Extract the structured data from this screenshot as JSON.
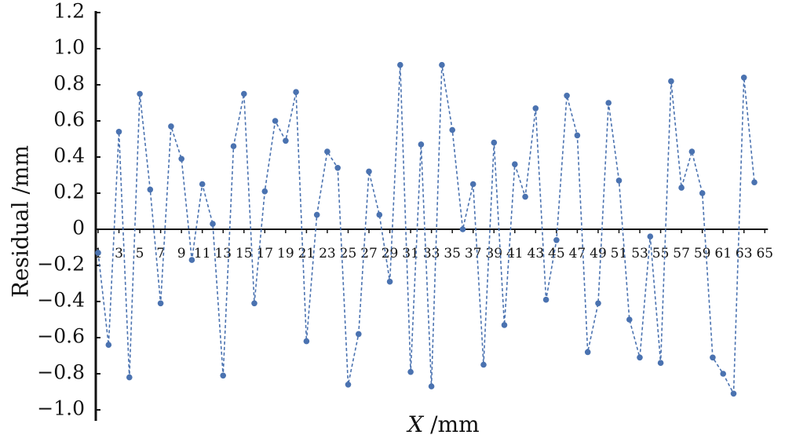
{
  "chart_data": {
    "type": "line",
    "xlabel_var": "X",
    "xlabel_unit": " /mm",
    "ylabel": "Residual /mm",
    "ylim": [
      -1.0,
      1.2
    ],
    "xlim": [
      1,
      65
    ],
    "grid": false,
    "yticks": [
      1.2,
      1.0,
      0.8,
      0.6,
      0.4,
      0.2,
      0,
      -0.2,
      -0.4,
      -0.6,
      -0.8,
      -1.0
    ],
    "ytick_labels": [
      "1.2",
      "1.0",
      "0.8",
      "0.6",
      "0.4",
      "0.2",
      "0",
      "−0.2",
      "−0.4",
      "−0.6",
      "−0.8",
      "−1.0"
    ],
    "xticks": [
      1,
      3,
      5,
      7,
      9,
      11,
      13,
      15,
      17,
      19,
      21,
      23,
      25,
      27,
      29,
      31,
      33,
      35,
      37,
      39,
      41,
      43,
      45,
      47,
      49,
      51,
      53,
      55,
      57,
      59,
      61,
      63,
      65
    ],
    "line_color": "#4a72b0",
    "marker_color": "#4a72b0",
    "line_style": "dashed",
    "series": [
      {
        "x": [
          1,
          2,
          3,
          4,
          5,
          6,
          7,
          8,
          9,
          10,
          11,
          12,
          13,
          14,
          15,
          16,
          17,
          18,
          19,
          20,
          21,
          22,
          23,
          24,
          25,
          26,
          27,
          28,
          29,
          30,
          31,
          32,
          33,
          34,
          35,
          36,
          37,
          38,
          39,
          40,
          41,
          42,
          43,
          44,
          45,
          46,
          47,
          48,
          49,
          50,
          51,
          52,
          53,
          54,
          55,
          56,
          57,
          58,
          59,
          60,
          61,
          62,
          63,
          64
        ],
        "values": [
          -0.13,
          -0.64,
          0.54,
          -0.82,
          0.75,
          0.22,
          -0.41,
          0.57,
          0.39,
          -0.17,
          0.25,
          0.03,
          -0.81,
          0.46,
          0.75,
          -0.41,
          0.21,
          0.6,
          0.49,
          0.76,
          -0.62,
          0.08,
          0.43,
          0.34,
          -0.86,
          -0.58,
          0.32,
          0.08,
          -0.29,
          0.91,
          -0.79,
          0.47,
          -0.87,
          0.91,
          0.55,
          0.0,
          0.25,
          -0.75,
          0.48,
          -0.53,
          0.36,
          0.18,
          0.67,
          -0.39,
          -0.06,
          0.74,
          0.52,
          -0.68,
          -0.41,
          0.7,
          0.27,
          -0.5,
          -0.71,
          -0.04,
          -0.74,
          0.82,
          0.23,
          0.43,
          0.2,
          -0.71,
          -0.8,
          -0.91,
          0.84,
          0.26
        ]
      }
    ]
  }
}
